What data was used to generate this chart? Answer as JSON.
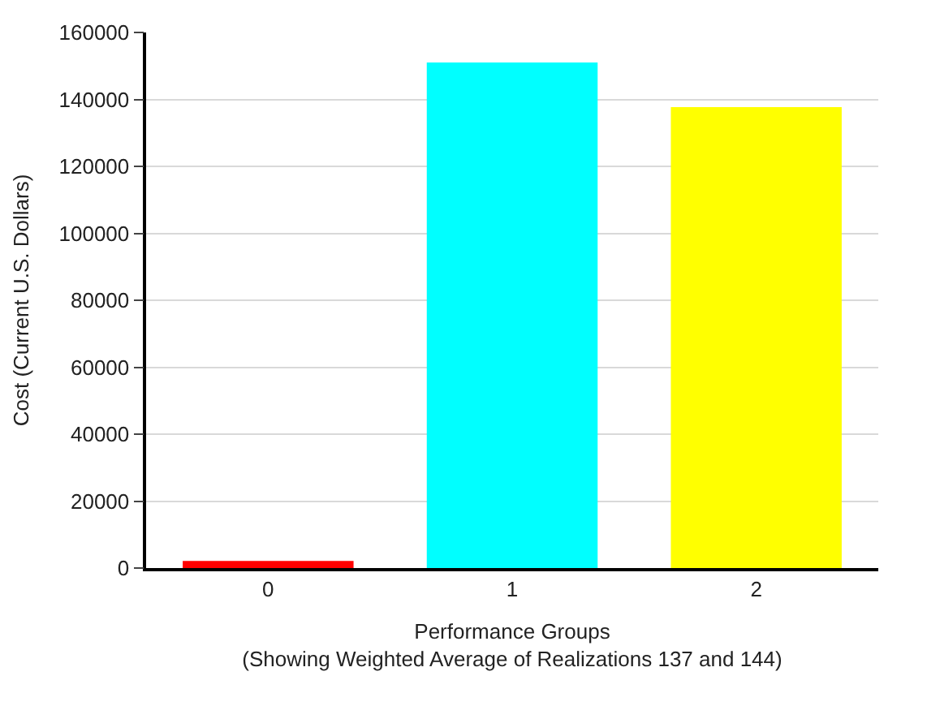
{
  "chart_data": {
    "type": "bar",
    "xlabel": "Performance Groups\n(Showing Weighted Average of Realizations 137 and 144)",
    "ylabel": "Cost (Current U.S. Dollars)",
    "categories": [
      "0",
      "1",
      "2"
    ],
    "values": [
      2100,
      151000,
      137700
    ],
    "colors": [
      "#ff0000",
      "#00ffff",
      "#ffff00"
    ],
    "ylim": [
      0,
      160000
    ],
    "yticks": [
      0,
      20000,
      40000,
      60000,
      80000,
      100000,
      120000,
      140000,
      160000
    ],
    "grid": "y"
  }
}
